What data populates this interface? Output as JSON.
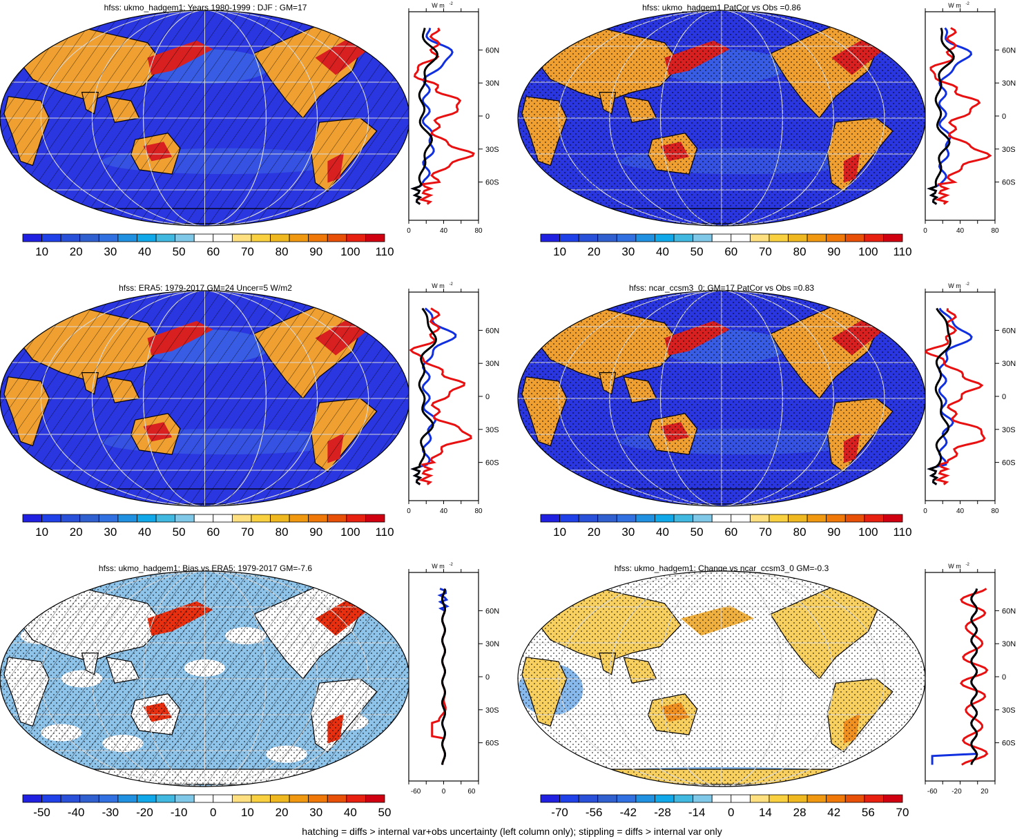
{
  "colors": {
    "ocean": "#2a36e0",
    "ocean_light": "#3f6ee6",
    "land_warm": "#f0a030",
    "land_hot": "#d82020",
    "bias_light": "#8ec3ea",
    "grid": "#d8d8d8",
    "line_blue": "#1030e0",
    "line_red": "#e81010",
    "line_black": "#000000"
  },
  "colorbar_colors": [
    "#2020e0",
    "#2040e8",
    "#2850d8",
    "#3060d0",
    "#3070e0",
    "#2090e0",
    "#10a8e8",
    "#40b8e0",
    "#80c8e8",
    "#ffffff",
    "#ffffff",
    "#ffe080",
    "#f8d040",
    "#f0b820",
    "#f09810",
    "#f07808",
    "#e85008",
    "#e82010",
    "#d00010"
  ],
  "panels": [
    {
      "id": "p1",
      "title": "hfss: ukmo_hadgem1: Years 1980-1999 : DJF : GM=17",
      "type": "abs",
      "hatch": true,
      "stipple": false,
      "colorbar_labels": [
        "10",
        "20",
        "30",
        "40",
        "50",
        "60",
        "70",
        "80",
        "90",
        "100",
        "110"
      ],
      "zonal_unit": "W m",
      "zonal_unit_sup": "-2",
      "zonal_xticks": [
        "0",
        "40",
        "80"
      ],
      "zonal_lat_labels": [
        "60N",
        "30N",
        "0",
        "30S",
        "60S"
      ]
    },
    {
      "id": "p2",
      "title": "hfss: ukmo_hadgem1 PatCor vs Obs =0.86",
      "type": "abs",
      "hatch": false,
      "stipple": true,
      "colorbar_labels": [
        "10",
        "20",
        "30",
        "40",
        "50",
        "60",
        "70",
        "80",
        "90",
        "100",
        "110"
      ],
      "zonal_unit": "W m",
      "zonal_unit_sup": "-2",
      "zonal_xticks": [
        "0",
        "40",
        "80"
      ],
      "zonal_lat_labels": [
        "60N",
        "30N",
        "0",
        "30S",
        "60S"
      ]
    },
    {
      "id": "p3",
      "title": "hfss: ERA5: 1979-2017 GM=24 Uncer=5 W/m2",
      "type": "abs",
      "hatch": true,
      "stipple": false,
      "colorbar_labels": [
        "10",
        "20",
        "30",
        "40",
        "50",
        "60",
        "70",
        "80",
        "90",
        "100",
        "110"
      ],
      "zonal_unit": "W m",
      "zonal_unit_sup": "-2",
      "zonal_xticks": [
        "0",
        "40",
        "80"
      ],
      "zonal_lat_labels": [
        "60N",
        "30N",
        "0",
        "30S",
        "60S"
      ]
    },
    {
      "id": "p4",
      "title": "hfss: ncar_ccsm3_0: GM=17 PatCor vs Obs =0.83",
      "type": "abs",
      "hatch": false,
      "stipple": true,
      "colorbar_labels": [
        "10",
        "20",
        "30",
        "40",
        "50",
        "60",
        "70",
        "80",
        "90",
        "100",
        "110"
      ],
      "zonal_unit": "W m",
      "zonal_unit_sup": "-2",
      "zonal_xticks": [
        "0",
        "40",
        "80"
      ],
      "zonal_lat_labels": [
        "60N",
        "30N",
        "0",
        "30S",
        "60S"
      ]
    },
    {
      "id": "p5",
      "title": "hfss: ukmo_hadgem1: Bias vs ERA5: 1979-2017 GM=-7.6",
      "type": "bias",
      "hatch": true,
      "stipple": true,
      "colorbar_labels": [
        "-50",
        "-40",
        "-30",
        "-20",
        "-10",
        "0",
        "10",
        "20",
        "30",
        "40",
        "50"
      ],
      "zonal_unit": "W m",
      "zonal_unit_sup": "-2",
      "zonal_xticks": [
        "-60",
        "0",
        "60"
      ],
      "zonal_lat_labels": [
        "60N",
        "30N",
        "0",
        "30S",
        "60S"
      ]
    },
    {
      "id": "p6",
      "title": "hfss: ukmo_hadgem1: Change vs ncar_ccsm3_0 GM=-0.3",
      "type": "change",
      "hatch": false,
      "stipple": true,
      "colorbar_labels": [
        "-70",
        "-56",
        "-42",
        "-28",
        "-14",
        "0",
        "14",
        "28",
        "42",
        "56",
        "70"
      ],
      "zonal_unit": "W m",
      "zonal_unit_sup": "-2",
      "zonal_xticks": [
        "-60",
        "-20",
        "20"
      ],
      "zonal_lat_labels": [
        "60N",
        "30N",
        "0",
        "30S",
        "60S"
      ]
    }
  ],
  "footer": "hatching = diffs > internal var+obs uncertainty (left column only); stippling = diffs > internal var only"
}
